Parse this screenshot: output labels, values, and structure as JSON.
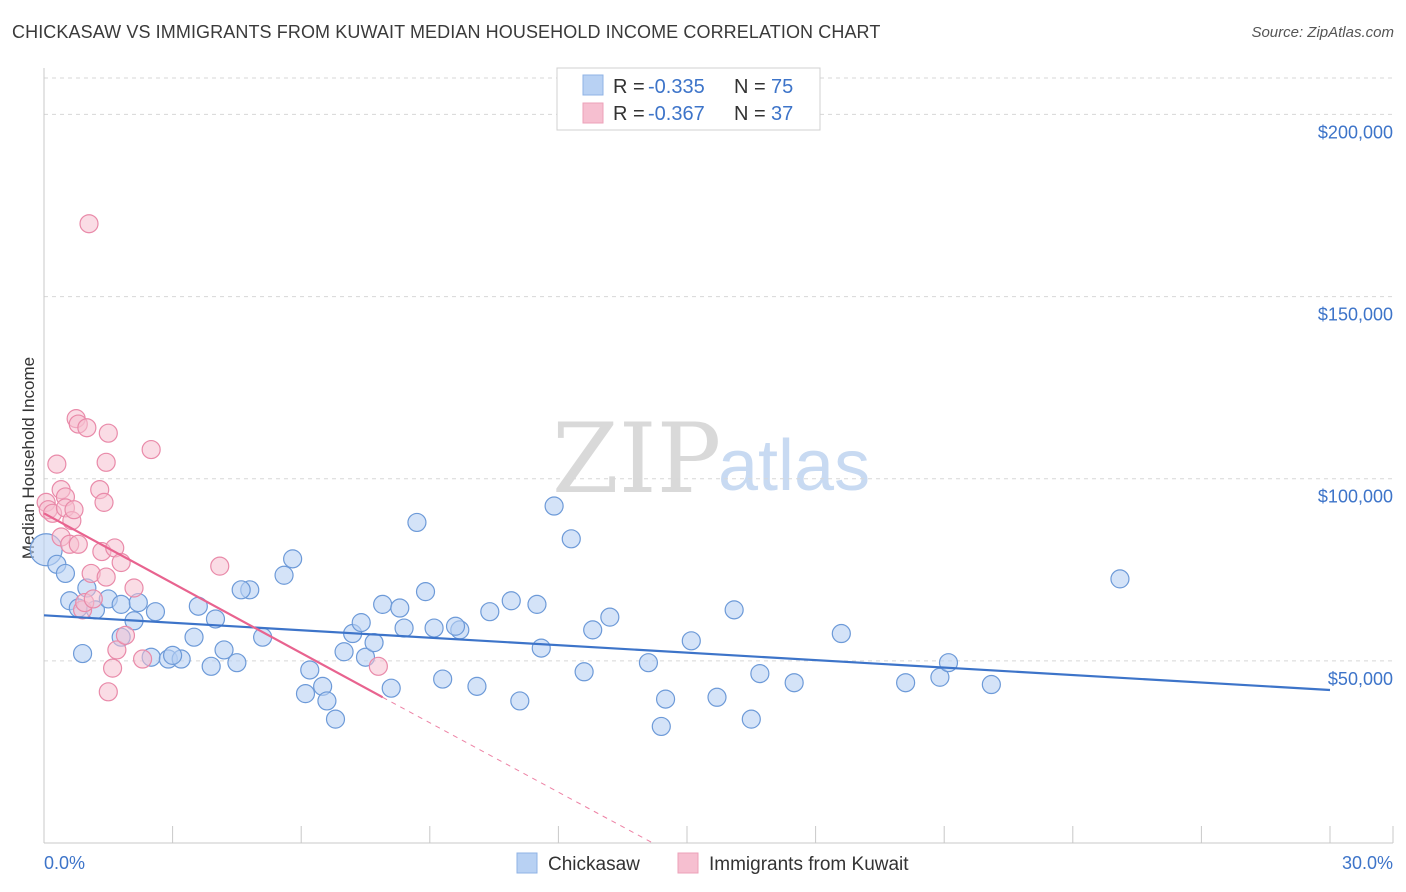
{
  "title": "CHICKASAW VS IMMIGRANTS FROM KUWAIT MEDIAN HOUSEHOLD INCOME CORRELATION CHART",
  "source": "Source: ZipAtlas.com",
  "watermark": {
    "zip": "ZIP",
    "atlas": "atlas"
  },
  "colors": {
    "blue": "#3d74c9",
    "blue_fill": "#b8d1f3",
    "pink": "#e8638f",
    "pink_fill": "#f6bfd0",
    "grid": "#d7d7d7"
  },
  "legend": [
    {
      "r_label": "R =",
      "r_value": "-0.335",
      "n_label": "N =",
      "n_value": "75"
    },
    {
      "r_label": "R =",
      "r_value": "-0.367",
      "n_label": "N =",
      "n_value": "37"
    }
  ],
  "chart_data": {
    "type": "scatter",
    "title": "CHICKASAW VS IMMIGRANTS FROM KUWAIT MEDIAN HOUSEHOLD INCOME CORRELATION CHART",
    "xlabel": "",
    "ylabel": "Median Household Income",
    "xlim": [
      0,
      30
    ],
    "ylim": [
      0,
      210000
    ],
    "x_tick_labels": [
      "0.0%",
      "30.0%"
    ],
    "y_ticks": [
      50000,
      100000,
      150000,
      200000
    ],
    "y_tick_labels": [
      "$50,000",
      "$100,000",
      "$150,000",
      "$200,000"
    ],
    "legend_position": "top-center",
    "series": [
      {
        "name": "Chickasaw",
        "color": "#3d74c9",
        "r": -0.335,
        "n": 75,
        "trendline": {
          "x": [
            0,
            30
          ],
          "y": [
            62500,
            42000
          ]
        },
        "points": [
          [
            0.05,
            80500
          ],
          [
            0.3,
            76500
          ],
          [
            0.5,
            74000
          ],
          [
            0.6,
            66500
          ],
          [
            1.0,
            70000
          ],
          [
            0.8,
            64500
          ],
          [
            1.2,
            64000
          ],
          [
            1.5,
            67000
          ],
          [
            1.8,
            65500
          ],
          [
            2.2,
            66000
          ],
          [
            2.1,
            61000
          ],
          [
            1.8,
            56500
          ],
          [
            2.6,
            63500
          ],
          [
            2.5,
            51000
          ],
          [
            2.9,
            50500
          ],
          [
            3.2,
            50500
          ],
          [
            3.5,
            56500
          ],
          [
            3.6,
            65000
          ],
          [
            3.9,
            48500
          ],
          [
            4.0,
            61500
          ],
          [
            4.2,
            53000
          ],
          [
            4.5,
            49500
          ],
          [
            4.8,
            69500
          ],
          [
            4.6,
            69500
          ],
          [
            5.1,
            56500
          ],
          [
            5.6,
            73500
          ],
          [
            5.8,
            78000
          ],
          [
            6.1,
            41000
          ],
          [
            6.2,
            47500
          ],
          [
            6.5,
            43000
          ],
          [
            6.6,
            39000
          ],
          [
            6.8,
            34000
          ],
          [
            7.0,
            52500
          ],
          [
            7.2,
            57500
          ],
          [
            7.4,
            60500
          ],
          [
            7.5,
            51000
          ],
          [
            7.7,
            55000
          ],
          [
            7.9,
            65500
          ],
          [
            8.1,
            42500
          ],
          [
            8.3,
            64500
          ],
          [
            8.4,
            59000
          ],
          [
            8.7,
            88000
          ],
          [
            8.9,
            69000
          ],
          [
            9.1,
            59000
          ],
          [
            9.3,
            45000
          ],
          [
            9.7,
            58500
          ],
          [
            10.1,
            43000
          ],
          [
            10.4,
            63500
          ],
          [
            10.9,
            66500
          ],
          [
            11.1,
            39000
          ],
          [
            11.5,
            65500
          ],
          [
            11.6,
            53500
          ],
          [
            11.9,
            92500
          ],
          [
            12.3,
            83500
          ],
          [
            12.6,
            47000
          ],
          [
            12.8,
            58500
          ],
          [
            13.2,
            62000
          ],
          [
            14.1,
            49500
          ],
          [
            14.4,
            32000
          ],
          [
            14.5,
            39500
          ],
          [
            15.1,
            55500
          ],
          [
            15.7,
            40000
          ],
          [
            16.1,
            64000
          ],
          [
            16.5,
            34000
          ],
          [
            16.7,
            46500
          ],
          [
            17.5,
            44000
          ],
          [
            18.6,
            57500
          ],
          [
            20.1,
            44000
          ],
          [
            20.9,
            45500
          ],
          [
            21.1,
            49500
          ],
          [
            22.1,
            43500
          ],
          [
            25.1,
            72500
          ],
          [
            0.9,
            52000
          ],
          [
            3.0,
            51500
          ],
          [
            9.6,
            59500
          ]
        ]
      },
      {
        "name": "Immigrants from Kuwait",
        "color": "#e8638f",
        "r": -0.367,
        "n": 37,
        "trendline": {
          "x": [
            0,
            7.9
          ],
          "y": [
            90500,
            40000
          ]
        },
        "trendline_dashed": {
          "x": [
            7.9,
            14.2
          ],
          "y": [
            40000,
            0
          ]
        },
        "points": [
          [
            0.05,
            93500
          ],
          [
            0.1,
            91500
          ],
          [
            0.2,
            90500
          ],
          [
            0.3,
            104000
          ],
          [
            0.4,
            97000
          ],
          [
            0.4,
            84000
          ],
          [
            0.5,
            95000
          ],
          [
            0.5,
            92000
          ],
          [
            0.6,
            82000
          ],
          [
            0.65,
            88500
          ],
          [
            0.7,
            91500
          ],
          [
            0.75,
            116500
          ],
          [
            0.8,
            115000
          ],
          [
            0.8,
            82000
          ],
          [
            0.9,
            64000
          ],
          [
            0.95,
            66000
          ],
          [
            1.0,
            114000
          ],
          [
            1.1,
            74000
          ],
          [
            1.15,
            67000
          ],
          [
            1.3,
            97000
          ],
          [
            1.35,
            80000
          ],
          [
            1.4,
            93500
          ],
          [
            1.45,
            104500
          ],
          [
            1.5,
            112500
          ],
          [
            1.5,
            41500
          ],
          [
            1.6,
            48000
          ],
          [
            1.65,
            81000
          ],
          [
            1.7,
            53000
          ],
          [
            1.8,
            77000
          ],
          [
            1.9,
            57000
          ],
          [
            2.1,
            70000
          ],
          [
            2.3,
            50500
          ],
          [
            2.5,
            108000
          ],
          [
            4.1,
            76000
          ],
          [
            7.8,
            48500
          ],
          [
            1.05,
            170000
          ],
          [
            1.45,
            73000
          ]
        ]
      }
    ]
  }
}
